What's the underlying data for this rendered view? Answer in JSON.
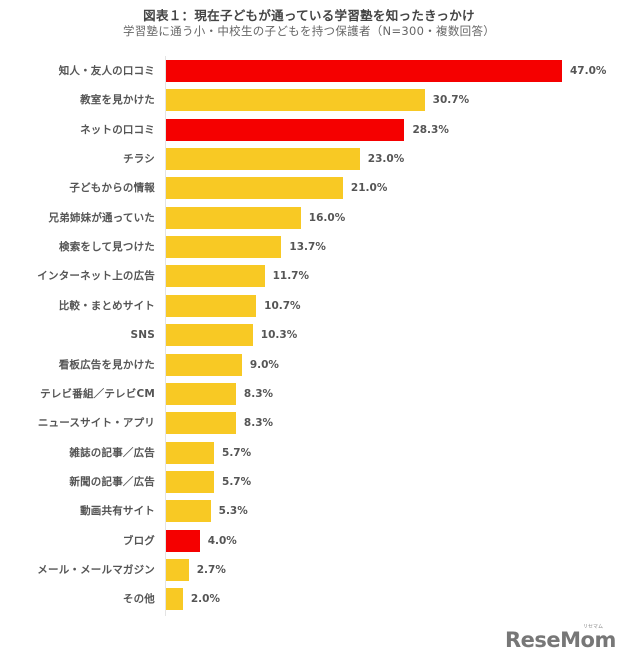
{
  "header": {
    "title": "図表１：現在子どもが通っている学習塾を知ったきっかけ",
    "subtitle": "学習塾に通う小・中校生の子どもを持つ保護者（N=300・複数回答）"
  },
  "colors": {
    "highlight": "#f50000",
    "default": "#f8c924",
    "label_text": "#555555",
    "axis": "#e4e4e4"
  },
  "logo": {
    "text": "ReseMom",
    "kana": "リセマム"
  },
  "chart_data": {
    "type": "bar",
    "orientation": "horizontal",
    "title": "図表１：現在子どもが通っている学習塾を知ったきっかけ",
    "subtitle": "学習塾に通う小・中校生の子どもを持つ保護者（N=300・複数回答）",
    "xlabel": "",
    "ylabel": "",
    "unit": "%",
    "xlim": [
      0,
      50
    ],
    "grid": false,
    "legend": "none",
    "categories": [
      "知人・友人の口コミ",
      "教室を見かけた",
      "ネットの口コミ",
      "チラシ",
      "子どもからの情報",
      "兄弟姉妹が通っていた",
      "検索をして見つけた",
      "インターネット上の広告",
      "比較・まとめサイト",
      "SNS",
      "看板広告を見かけた",
      "テレビ番組／テレビCM",
      "ニュースサイト・アプリ",
      "雑誌の記事／広告",
      "新聞の記事／広告",
      "動画共有サイト",
      "ブログ",
      "メール・メールマガジン",
      "その他"
    ],
    "values": [
      47.0,
      30.7,
      28.3,
      23.0,
      21.0,
      16.0,
      13.7,
      11.7,
      10.7,
      10.3,
      9.0,
      8.3,
      8.3,
      5.7,
      5.7,
      5.3,
      4.0,
      2.7,
      2.0
    ],
    "value_labels": [
      "47.0%",
      "30.7%",
      "28.3%",
      "23.0%",
      "21.0%",
      "16.0%",
      "13.7%",
      "11.7%",
      "10.7%",
      "10.3%",
      "9.0%",
      "8.3%",
      "8.3%",
      "5.7%",
      "5.7%",
      "5.3%",
      "4.0%",
      "2.7%",
      "2.0%"
    ],
    "highlighted": [
      true,
      false,
      true,
      false,
      false,
      false,
      false,
      false,
      false,
      false,
      false,
      false,
      false,
      false,
      false,
      false,
      true,
      false,
      false
    ]
  }
}
